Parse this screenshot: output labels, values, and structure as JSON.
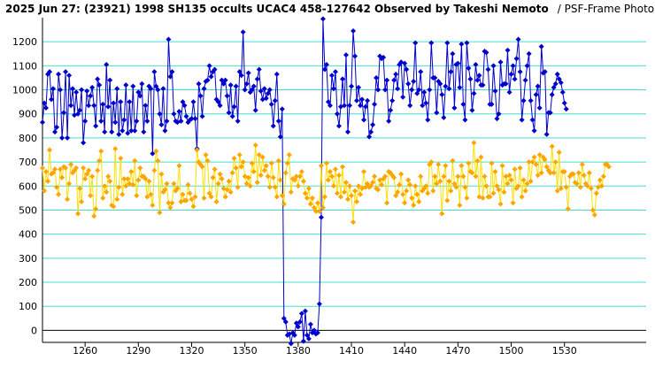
{
  "chart_data": {
    "type": "line",
    "title": "2025 Jun 27: (23921) 1998 SH135 occults UCAC4 458-127642 Observed by Takeshi Nemoto",
    "subtitle": "/ PSF-Frame Photometry /",
    "xlabel": "",
    "ylabel": "",
    "xlim": [
      1236,
      1576
    ],
    "ylim": [
      -50,
      1300
    ],
    "x_ticks": [
      1260,
      1290,
      1320,
      1350,
      1380,
      1410,
      1440,
      1470,
      1500,
      1530
    ],
    "y_ticks": [
      0,
      100,
      200,
      300,
      400,
      500,
      600,
      700,
      800,
      900,
      1000,
      1100,
      1200
    ],
    "grid": true,
    "legend": "none",
    "x_start": 1236,
    "x_step": 1,
    "series": [
      {
        "color": "#0000cd",
        "marker": "diamond",
        "values": [
          865,
          945,
          925,
          1065,
          1075,
          960,
          1005,
          825,
          845,
          1065,
          1000,
          800,
          905,
          1075,
          800,
          1060,
          935,
          1005,
          895,
          990,
          900,
          915,
          1000,
          780,
          870,
          995,
          935,
          975,
          1010,
          935,
          850,
          1045,
          1020,
          870,
          940,
          825,
          1105,
          930,
          1040,
          825,
          945,
          865,
          1005,
          815,
          950,
          830,
          875,
          1020,
          820,
          950,
          830,
          1015,
          830,
          870,
          990,
          975,
          1025,
          825,
          935,
          870,
          1015,
          1005,
          735,
          1075,
          1015,
          1000,
          900,
          855,
          1005,
          830,
          870,
          1210,
          1055,
          1075,
          900,
          870,
          865,
          910,
          870,
          950,
          935,
          890,
          865,
          875,
          880,
          950,
          880,
          755,
          1025,
          975,
          890,
          1005,
          1035,
          1040,
          1100,
          1055,
          1075,
          1085,
          960,
          950,
          935,
          1040,
          1025,
          1040,
          975,
          905,
          1020,
          890,
          930,
          1015,
          870,
          1075,
          1060,
          1240,
          1000,
          1025,
          1070,
          990,
          1000,
          1015,
          915,
          1045,
          1085,
          995,
          960,
          1005,
          965,
          985,
          1000,
          940,
          850,
          955,
          1065,
          870,
          805,
          920,
          50,
          35,
          -20,
          -15,
          -55,
          -10,
          -20,
          30,
          15,
          35,
          70,
          -45,
          80,
          -20,
          -35,
          25,
          -10,
          0,
          -15,
          -10,
          110,
          470,
          1295,
          1085,
          1105,
          950,
          935,
          1060,
          1005,
          1075,
          900,
          850,
          930,
          1045,
          935,
          1145,
          825,
          935,
          1015,
          1245,
          1140,
          955,
          1010,
          935,
          960,
          875,
          930,
          955,
          805,
          825,
          855,
          940,
          1050,
          1000,
          1140,
          1130,
          1135,
          1000,
          1040,
          870,
          915,
          955,
          1040,
          1065,
          1005,
          1105,
          1115,
          970,
          1110,
          1085,
          1025,
          935,
          1000,
          1035,
          1195,
          985,
          1000,
          1075,
          935,
          990,
          945,
          875,
          1000,
          1195,
          1050,
          1050,
          905,
          1035,
          1025,
          980,
          885,
          1015,
          1195,
          1005,
          1075,
          1150,
          925,
          1105,
          1110,
          1010,
          1190,
          940,
          875,
          1195,
          1090,
          1045,
          915,
          985,
          1105,
          1040,
          1060,
          1020,
          1020,
          1160,
          1155,
          1085,
          940,
          940,
          1100,
          995,
          880,
          900,
          1115,
          1020,
          1025,
          1025,
          1165,
          990,
          1065,
          1100,
          1045,
          1130,
          1210,
          1075,
          875,
          955,
          1040,
          1100,
          1150,
          955,
          875,
          830,
          980,
          1015,
          925,
          1180,
          1070,
          1075,
          815,
          905,
          905,
          980,
          1010,
          1025,
          1065,
          1045,
          1030,
          990,
          945,
          920
        ]
      },
      {
        "color": "#ffe000",
        "marker": "diamond",
        "marker_color": "#ffa500",
        "values": [
          675,
          580,
          660,
          620,
          750,
          650,
          655,
          670,
          595,
          565,
          670,
          635,
          680,
          675,
          545,
          610,
          690,
          655,
          665,
          675,
          485,
          590,
          535,
          675,
          630,
          650,
          665,
          560,
          640,
          475,
          505,
          665,
          705,
          745,
          550,
          600,
          575,
          640,
          620,
          520,
          515,
          755,
          545,
          595,
          715,
          565,
          630,
          600,
          630,
          610,
          660,
          605,
          705,
          560,
          625,
          675,
          640,
          640,
          630,
          555,
          620,
          565,
          520,
          665,
          745,
          705,
          490,
          650,
          575,
          585,
          610,
          530,
          510,
          530,
          610,
          580,
          590,
          685,
          535,
          565,
          540,
          540,
          605,
          570,
          545,
          515,
          555,
          750,
          700,
          690,
          680,
          550,
          730,
          705,
          570,
          555,
          635,
          670,
          535,
          610,
          650,
          630,
          590,
          555,
          585,
          620,
          575,
          655,
          715,
          675,
          595,
          730,
          680,
          700,
          640,
          610,
          635,
          600,
          695,
          660,
          770,
          615,
          730,
          645,
          720,
          665,
          685,
          640,
          595,
          695,
          635,
          595,
          555,
          705,
          625,
          560,
          525,
          655,
          695,
          730,
          575,
          630,
          625,
          640,
          600,
          640,
          660,
          620,
          570,
          550,
          590,
          525,
          550,
          510,
          495,
          530,
          495,
          685,
          510,
          555,
          695,
          625,
          660,
          640,
          600,
          670,
          570,
          645,
          555,
          680,
          575,
          615,
          545,
          600,
          560,
          450,
          580,
          535,
          600,
          565,
          590,
          660,
          595,
          610,
          595,
          600,
          615,
          640,
          590,
          585,
          625,
          605,
          630,
          640,
          530,
          660,
          655,
          645,
          635,
          560,
          575,
          605,
          650,
          565,
          530,
          580,
          625,
          605,
          550,
          520,
          600,
          565,
          535,
          640,
          580,
          590,
          600,
          570,
          690,
          700,
          580,
          640,
          610,
          690,
          620,
          485,
          640,
          685,
          540,
          620,
          580,
          705,
          610,
          595,
          640,
          520,
          685,
          640,
          595,
          550,
          695,
          660,
          655,
          780,
          640,
          705,
          555,
          720,
          550,
          640,
          600,
          555,
          555,
          695,
          570,
          660,
          600,
          585,
          525,
          685,
          575,
          640,
          610,
          645,
          625,
          530,
          670,
          590,
          600,
          675,
          555,
          625,
          580,
          610,
          700,
          620,
          700,
          720,
          690,
          645,
          730,
          655,
          720,
          710,
          680,
          665,
          655,
          765,
          655,
          700,
          580,
          740,
          590,
          660,
          660,
          595,
          505,
          640,
          650,
          650,
          615,
          610,
          655,
          595,
          690,
          645,
          610,
          600,
          655,
          590,
          500,
          480,
          570,
          595,
          625,
          600,
          640,
          690,
          690,
          680
        ]
      }
    ]
  }
}
